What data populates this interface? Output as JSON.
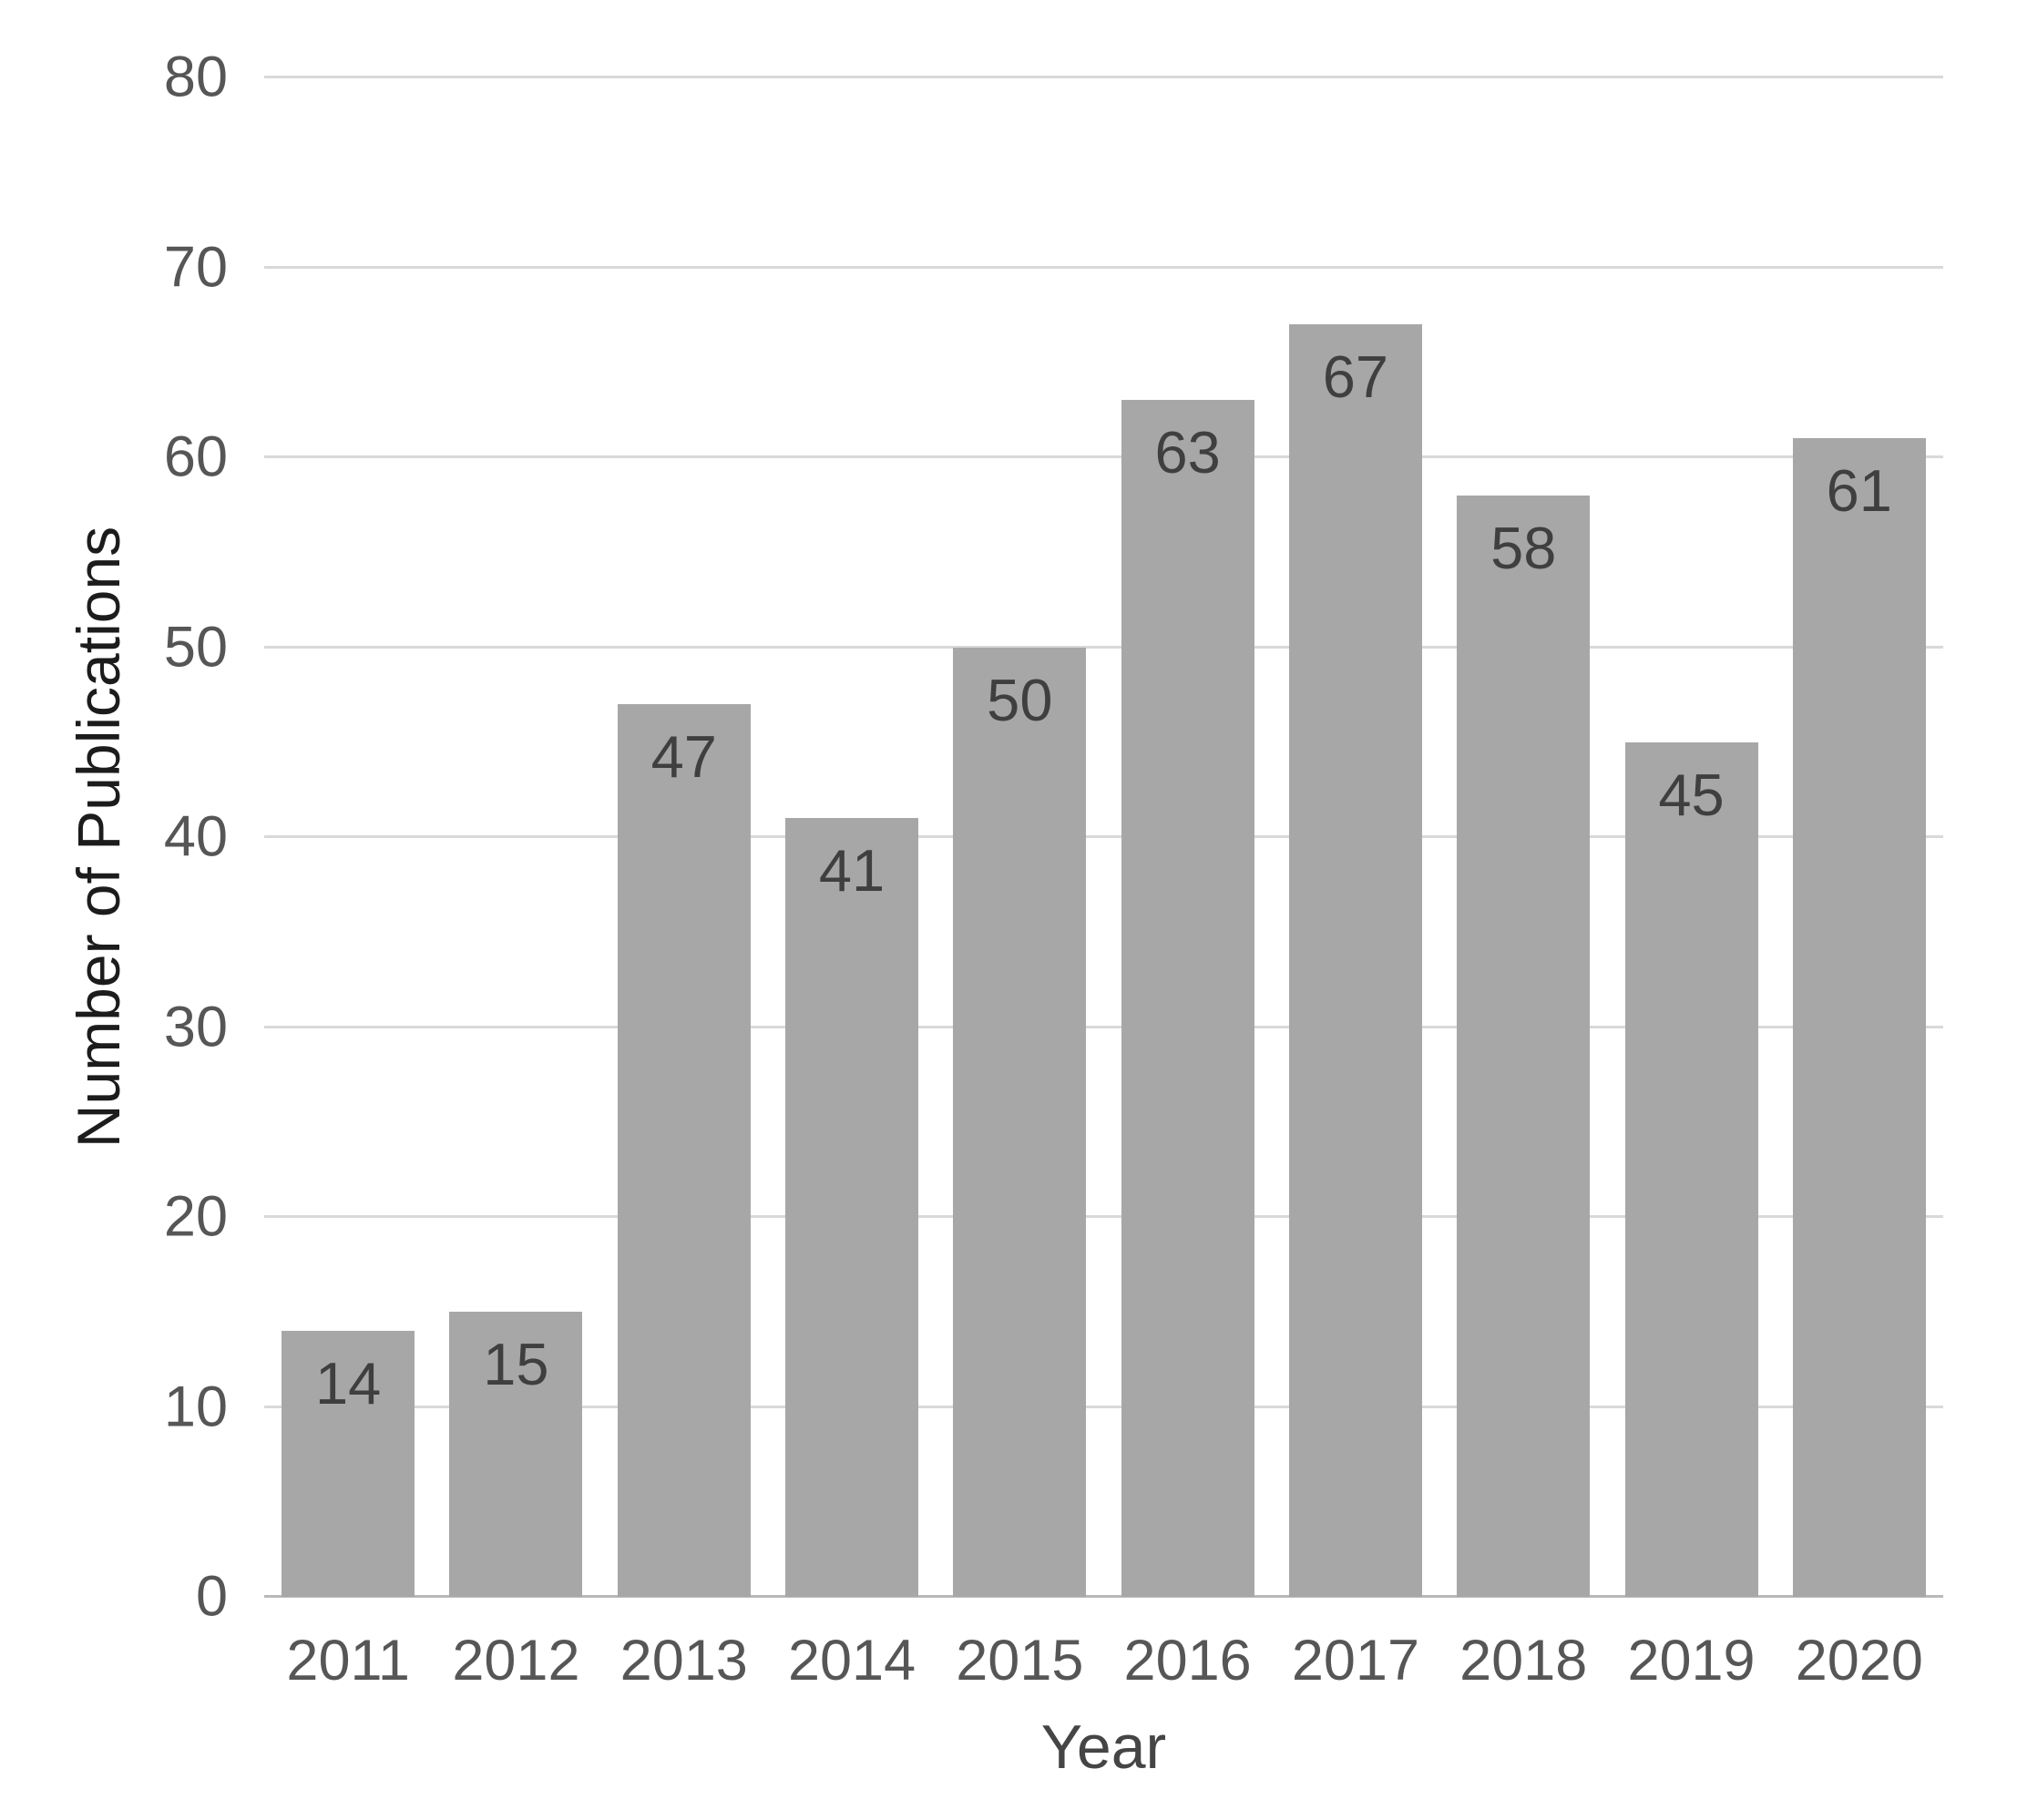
{
  "chart_data": {
    "type": "bar",
    "title": "",
    "categories": [
      "2011",
      "2012",
      "2013",
      "2014",
      "2015",
      "2016",
      "2017",
      "2018",
      "2019",
      "2020"
    ],
    "values": [
      14,
      15,
      47,
      41,
      50,
      63,
      67,
      58,
      45,
      61
    ],
    "xlabel": "Year",
    "ylabel": "Number of Publications",
    "ylim": [
      0,
      80
    ],
    "yticks": [
      0,
      10,
      20,
      30,
      40,
      50,
      60,
      70,
      80
    ],
    "grid": true,
    "legend": false,
    "data_label_position": "inside-end"
  },
  "colors": {
    "bar_fill": "#a7a7a7",
    "gridline": "#d9d9d9",
    "axis_line": "#b9b9b9",
    "tick_label": "#565656",
    "data_label": "#3f3f3f",
    "x_axis_title": "#454545",
    "y_axis_title": "#1c1c1c",
    "background": "#ffffff"
  }
}
